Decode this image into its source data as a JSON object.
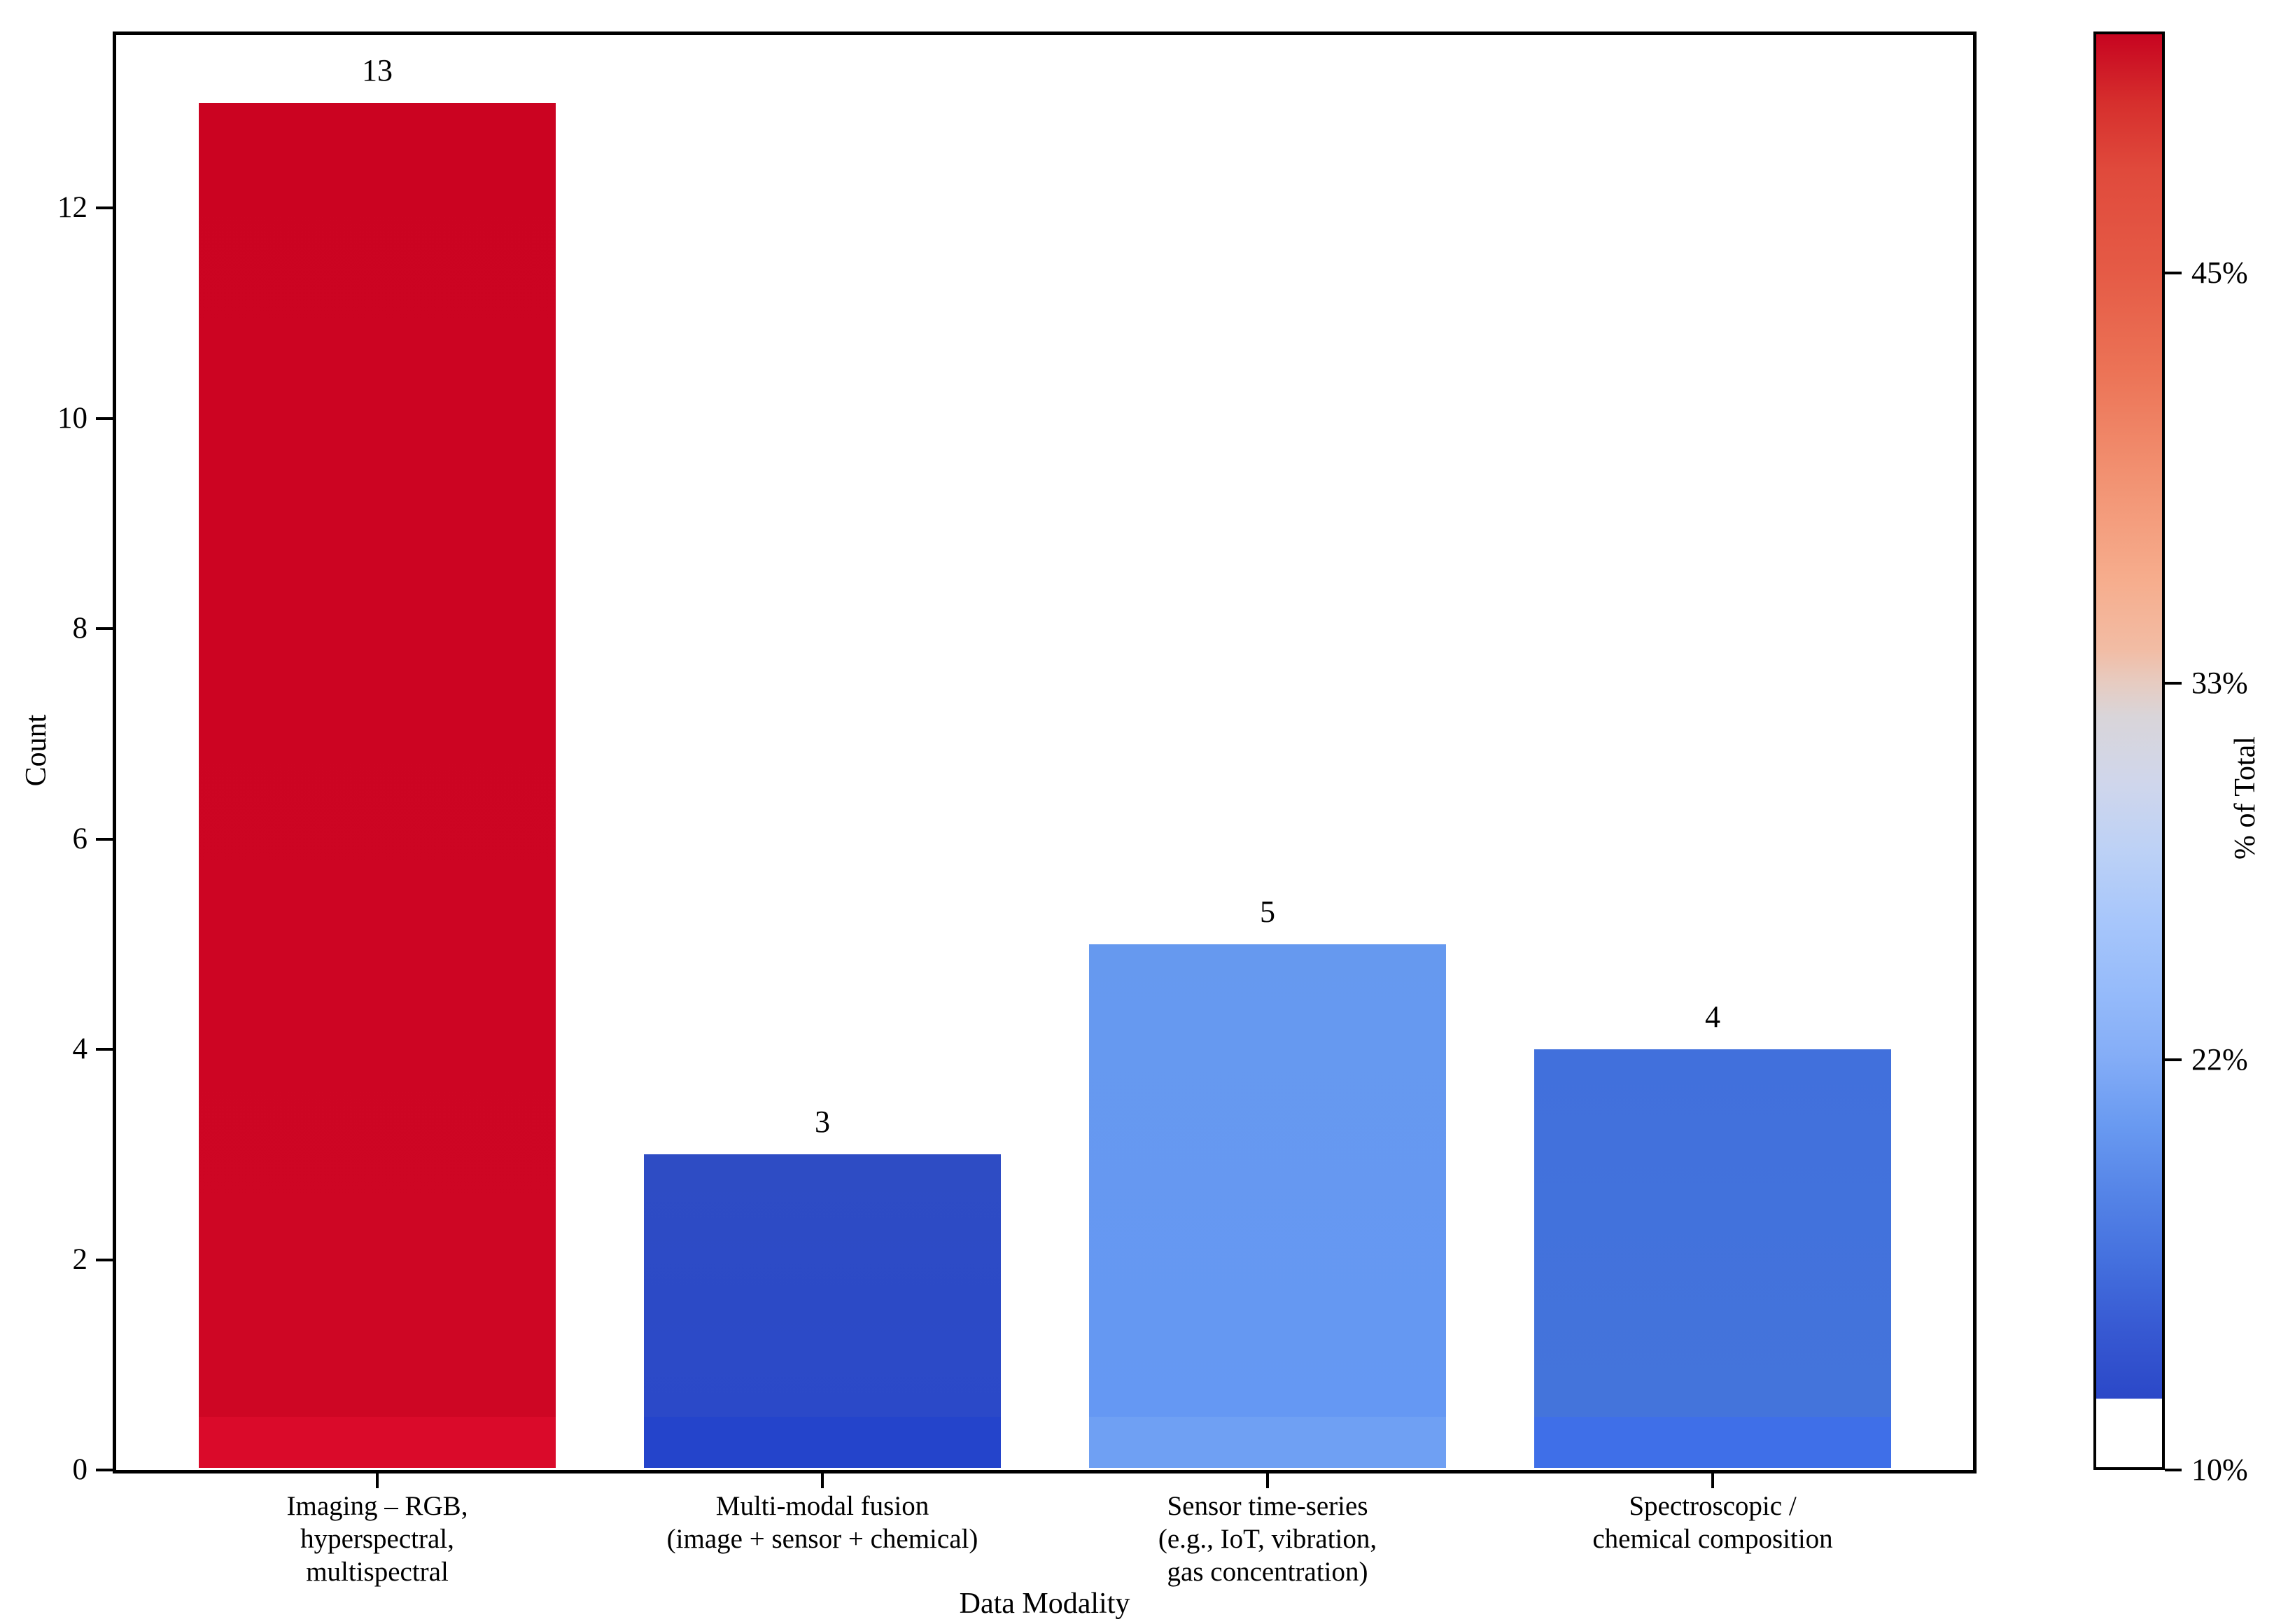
{
  "chart_data": {
    "type": "bar",
    "title": "",
    "xlabel": "Data Modality",
    "ylabel": "Count",
    "grid": false,
    "categories": [
      "Imaging – RGB,\nhyperspectral,\nmultispectral",
      "Multi-modal fusion\n(image + sensor + chemical)",
      "Sensor time-series\n(e.g., IoT, vibration,\ngas concentration)",
      "Spectroscopic /\nchemical composition"
    ],
    "values": [
      13,
      3,
      5,
      4
    ],
    "value_labels": [
      "13",
      "3",
      "5",
      "4"
    ],
    "percent_of_total": [
      52,
      12,
      20,
      16
    ],
    "yticks": [
      0,
      2,
      4,
      6,
      8,
      10,
      12
    ],
    "ylim": [
      0,
      13.68
    ],
    "bar_colors": [
      {
        "top": "#cb0321",
        "bottom": "#ce0624",
        "strip": "#da0a2a"
      },
      {
        "top": "#2e4cc4",
        "bottom": "#2b49c8",
        "strip": "#2444cb"
      },
      {
        "top": "#6699ef",
        "bottom": "#6598f3",
        "strip": "#6fa0f3"
      },
      {
        "top": "#4170dc",
        "bottom": "#4474db",
        "strip": "#3f6fe8"
      }
    ],
    "colorbar": {
      "label": "% of Total",
      "ticks": [
        {
          "label": "45%",
          "value": 45
        },
        {
          "label": "33%",
          "value": 33
        },
        {
          "label": "22%",
          "value": 22
        },
        {
          "label": "10%",
          "value": 10
        }
      ],
      "value_min": 10,
      "value_max": 52.05,
      "under_color": "#ffffff",
      "under_fraction": 0.9523,
      "gradient": [
        [
          0.0,
          "#c70420"
        ],
        [
          0.048,
          "#d62f2d"
        ],
        [
          0.095,
          "#e04a3c"
        ],
        [
          0.167,
          "#e55b46"
        ],
        [
          0.238,
          "#ec7457"
        ],
        [
          0.31,
          "#f29272"
        ],
        [
          0.381,
          "#f6ad8d"
        ],
        [
          0.429,
          "#f2bca4"
        ],
        [
          0.452,
          "#e7cbc0"
        ],
        [
          0.476,
          "#d9d5d9"
        ],
        [
          0.524,
          "#cfd6ec"
        ],
        [
          0.571,
          "#bcd1f6"
        ],
        [
          0.619,
          "#a7c6fb"
        ],
        [
          0.667,
          "#96bbfa"
        ],
        [
          0.714,
          "#84adf7"
        ],
        [
          0.761,
          "#699af1"
        ],
        [
          0.809,
          "#5584e7"
        ],
        [
          0.856,
          "#4470de"
        ],
        [
          0.904,
          "#3759d2"
        ],
        [
          0.952,
          "#2b48c8"
        ]
      ]
    }
  }
}
